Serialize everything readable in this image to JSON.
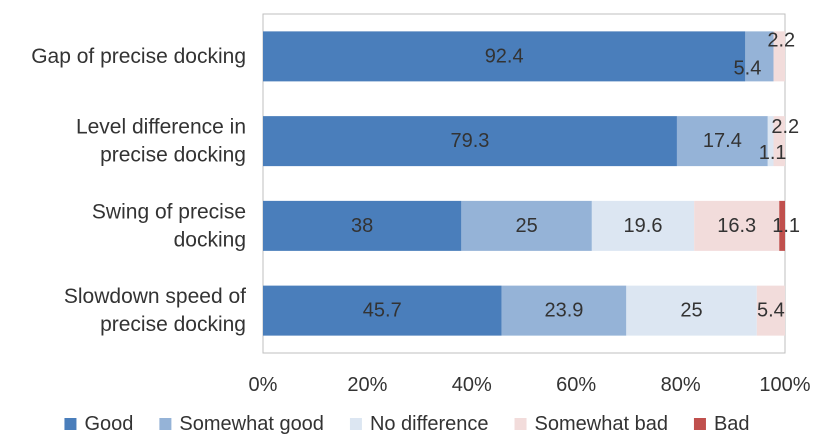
{
  "chart_data": {
    "type": "bar",
    "orientation": "horizontal",
    "stacked": true,
    "percent_stacked": true,
    "categories": [
      [
        "Gap of precise docking"
      ],
      [
        "Level difference in",
        "precise docking"
      ],
      [
        "Swing of precise",
        "docking"
      ],
      [
        "Slowdown speed of",
        "precise docking"
      ]
    ],
    "series": [
      {
        "name": "Good",
        "color": "#4a7ebb",
        "values": [
          92.4,
          79.3,
          38,
          45.7
        ]
      },
      {
        "name": "Somewhat good",
        "color": "#95b3d7",
        "values": [
          5.4,
          17.4,
          25,
          23.9
        ]
      },
      {
        "name": "No difference",
        "color": "#dce6f2",
        "values": [
          0,
          1.1,
          19.6,
          25
        ]
      },
      {
        "name": "Somewhat bad",
        "color": "#f2dcdb",
        "values": [
          2.2,
          2.2,
          16.3,
          5.4
        ]
      },
      {
        "name": "Bad",
        "color": "#c0504d",
        "values": [
          0,
          0,
          1.1,
          0
        ]
      }
    ],
    "data_labels": [
      [
        "92.4",
        "5.4",
        "",
        "2.2",
        ""
      ],
      [
        "79.3",
        "17.4",
        "1.1",
        "2.2",
        ""
      ],
      [
        "38",
        "25",
        "19.6",
        "16.3",
        "1.1"
      ],
      [
        "45.7",
        "23.9",
        "25",
        "5.4",
        ""
      ]
    ],
    "x_ticks": [
      "0%",
      "20%",
      "40%",
      "60%",
      "80%",
      "100%"
    ],
    "xlim": [
      0,
      100
    ],
    "title": "",
    "xlabel": "",
    "ylabel": "",
    "grid": false,
    "legend_position": "bottom"
  }
}
